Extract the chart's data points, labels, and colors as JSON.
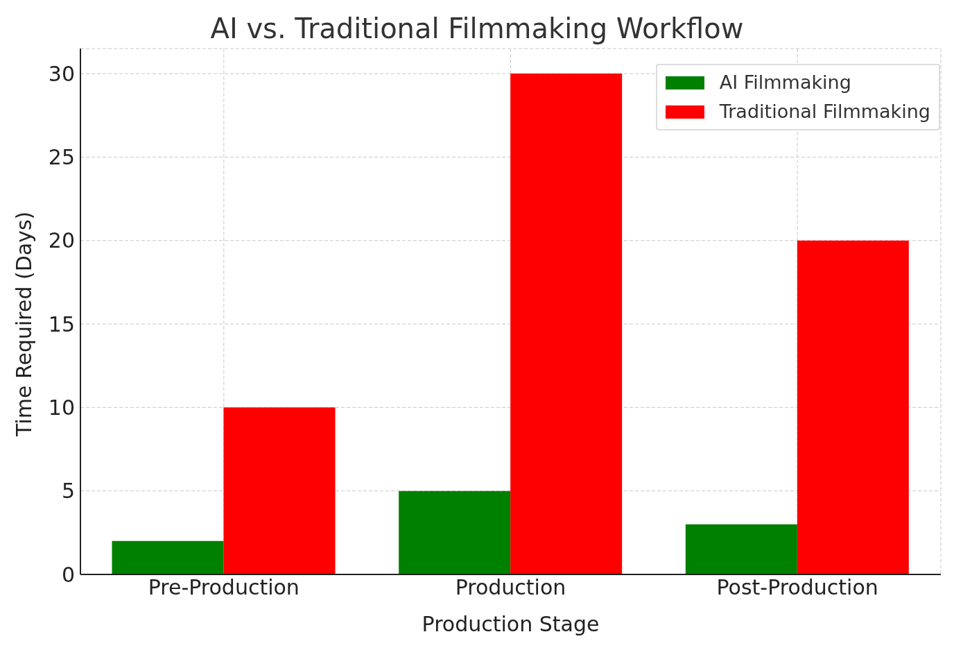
{
  "chart_data": {
    "type": "bar",
    "title": "AI vs. Traditional Filmmaking Workflow",
    "xlabel": "Production Stage",
    "ylabel": "Time Required (Days)",
    "categories": [
      "Pre-Production",
      "Production",
      "Post-Production"
    ],
    "series": [
      {
        "name": "AI Filmmaking",
        "color": "#008000",
        "values": [
          2,
          5,
          3
        ]
      },
      {
        "name": "Traditional Filmmaking",
        "color": "#ff0000",
        "values": [
          10,
          30,
          20
        ]
      }
    ],
    "ylim": [
      0,
      31.5
    ],
    "yticks": [
      0,
      5,
      10,
      15,
      20,
      25,
      30
    ],
    "grid": true,
    "legend": "top right"
  }
}
